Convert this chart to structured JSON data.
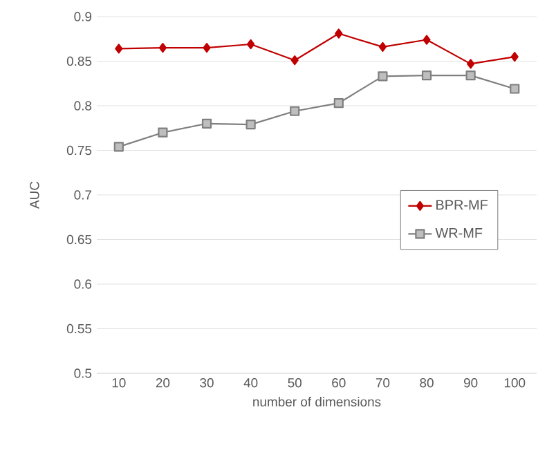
{
  "chart_data": {
    "type": "line",
    "xlabel": "number of dimensions",
    "ylabel": "AUC",
    "categories": [
      "10",
      "20",
      "30",
      "40",
      "50",
      "60",
      "70",
      "80",
      "90",
      "100"
    ],
    "series": [
      {
        "name": "BPR-MF",
        "color": "#c00000",
        "marker": "diamond",
        "values": [
          0.864,
          0.865,
          0.865,
          0.869,
          0.851,
          0.881,
          0.866,
          0.874,
          0.847,
          0.855
        ]
      },
      {
        "name": "WR-MF",
        "color": "#7f7f7f",
        "marker": "square",
        "values": [
          0.754,
          0.77,
          0.78,
          0.779,
          0.794,
          0.803,
          0.833,
          0.834,
          0.834,
          0.819
        ]
      }
    ],
    "ylim": [
      0.5,
      0.9
    ],
    "yticks": [
      0.5,
      0.55,
      0.6,
      0.65,
      0.7,
      0.75,
      0.8,
      0.85,
      0.9
    ],
    "grid": "y",
    "legend": "right",
    "line_style": "solid"
  }
}
